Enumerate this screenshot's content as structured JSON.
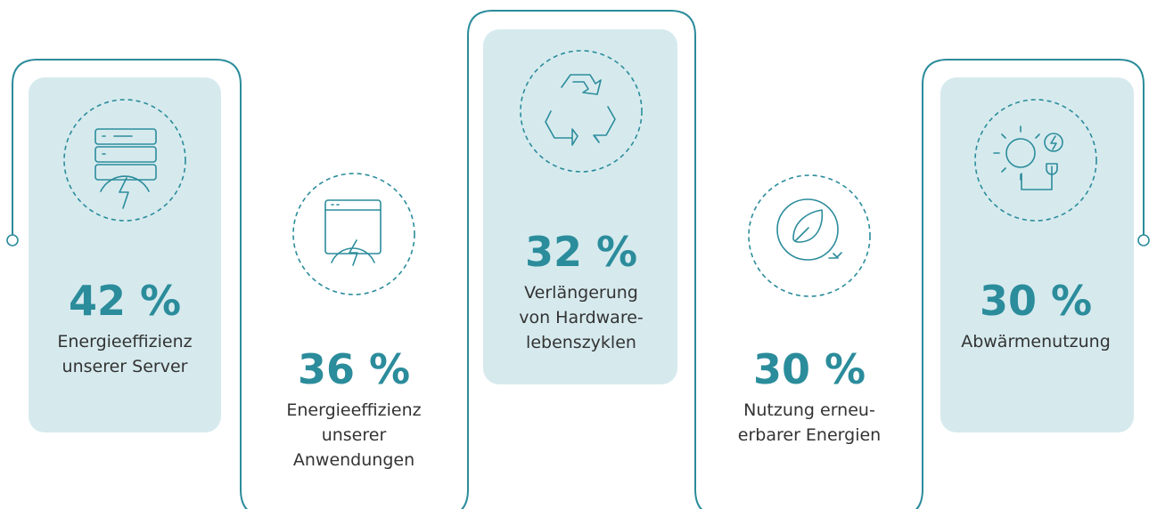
{
  "items": [
    {
      "percent": "42 %",
      "label": [
        "Energieeffizienz",
        "unserer Server"
      ]
    },
    {
      "percent": "36 %",
      "label": [
        "Energieeffizienz",
        "unserer",
        "Anwendungen"
      ]
    },
    {
      "percent": "32 %",
      "label": [
        "Verlängerung",
        "von Hardware-",
        "lebenszyklen"
      ]
    },
    {
      "percent": "30 %",
      "label": [
        "Nutzung erneu-",
        "erbarer Energien"
      ]
    },
    {
      "percent": "30 %",
      "label": [
        "Abwärmenutzung"
      ]
    }
  ]
}
